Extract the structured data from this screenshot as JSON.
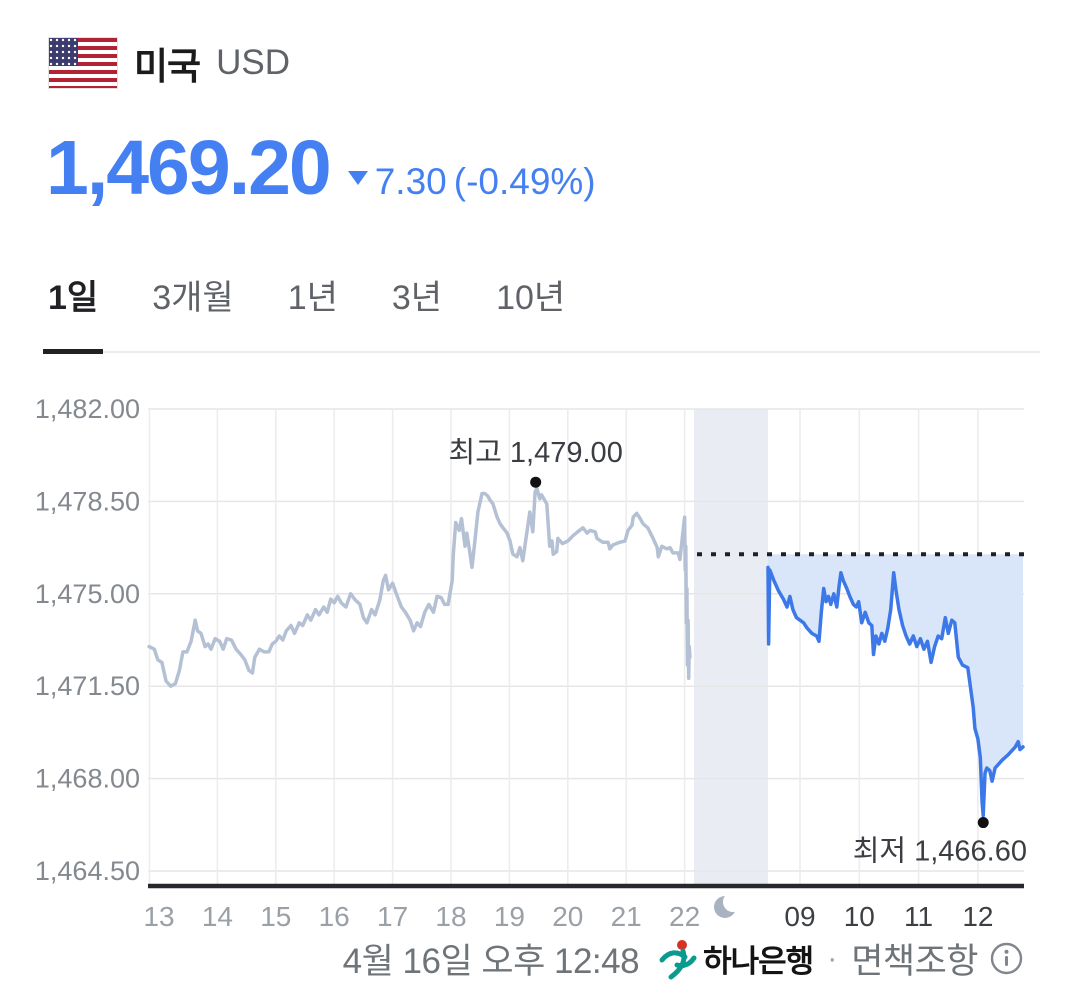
{
  "header": {
    "country": "미국",
    "currency_code": "USD",
    "price": "1,469.20",
    "change_direction": "down",
    "change_value": "7.30",
    "change_percent": "(-0.49%)"
  },
  "tabs": [
    {
      "label": "1일",
      "active": true
    },
    {
      "label": "3개월",
      "active": false
    },
    {
      "label": "1년",
      "active": false
    },
    {
      "label": "3년",
      "active": false
    },
    {
      "label": "10년",
      "active": false
    }
  ],
  "footer": {
    "timestamp": "4월 16일 오후 12:48",
    "source": "하나은행",
    "separator": "·",
    "disclaimer": "면책조항",
    "info_icon": "info-circle-icon"
  },
  "colors": {
    "accent_blue": "#4480f2",
    "line_prev": "#b4c1d4",
    "line_today": "#3c78e8",
    "fill_today": "#d9e6f9",
    "night_band": "#e9edf3",
    "grid": "#e6e6e6",
    "axis_label": "#84898f",
    "x_label_prev": "#9aa0a6",
    "x_label_today": "#3c4043",
    "dotted_line": "#202124",
    "annotation": "#3a3d41",
    "axis_line": "#26282b",
    "moon": "#a9b2c1"
  },
  "chart_data": {
    "type": "line",
    "title": "USD/KRW intraday (1일)",
    "ylim": [
      1464.5,
      1482.0
    ],
    "grid": true,
    "prev_close_value": 1476.5,
    "y_ticks": [
      {
        "label": "1,482.00",
        "value": 1482.0
      },
      {
        "label": "1,478.50",
        "value": 1478.5
      },
      {
        "label": "1,475.00",
        "value": 1475.0
      },
      {
        "label": "1,471.50",
        "value": 1471.5
      },
      {
        "label": "1,468.00",
        "value": 1468.0
      },
      {
        "label": "1,464.50",
        "value": 1464.5
      }
    ],
    "x_ticks_prev": [
      {
        "label": "13",
        "t": 13
      },
      {
        "label": "14",
        "t": 14
      },
      {
        "label": "15",
        "t": 15
      },
      {
        "label": "16",
        "t": 16
      },
      {
        "label": "17",
        "t": 17
      },
      {
        "label": "18",
        "t": 18
      },
      {
        "label": "19",
        "t": 19
      },
      {
        "label": "20",
        "t": 20
      },
      {
        "label": "21",
        "t": 21
      },
      {
        "label": "22",
        "t": 22
      }
    ],
    "x_ticks_today": [
      {
        "label": "09",
        "t": 9
      },
      {
        "label": "10",
        "t": 10
      },
      {
        "label": "11",
        "t": 11
      },
      {
        "label": "12",
        "t": 12
      }
    ],
    "night_gap_icon": "moon-crescent-icon",
    "high_annotation": {
      "label": "최고 1,479.00",
      "value": 1479.0,
      "t": 19.45
    },
    "low_annotation": {
      "label": "최저 1,466.60",
      "value": 1466.6,
      "t": 12.09
    },
    "series": [
      {
        "name": "previous-day",
        "session": "prev",
        "points": [
          [
            12.83,
            1473.0
          ],
          [
            12.92,
            1472.9
          ],
          [
            12.98,
            1472.5
          ],
          [
            13.05,
            1472.4
          ],
          [
            13.12,
            1471.7
          ],
          [
            13.2,
            1471.5
          ],
          [
            13.28,
            1471.6
          ],
          [
            13.35,
            1472.1
          ],
          [
            13.41,
            1472.8
          ],
          [
            13.48,
            1472.8
          ],
          [
            13.55,
            1473.2
          ],
          [
            13.62,
            1474.0
          ],
          [
            13.66,
            1473.6
          ],
          [
            13.72,
            1473.5
          ],
          [
            13.79,
            1473.0
          ],
          [
            13.84,
            1473.1
          ],
          [
            13.89,
            1472.9
          ],
          [
            13.96,
            1473.3
          ],
          [
            14.04,
            1473.2
          ],
          [
            14.1,
            1472.9
          ],
          [
            14.16,
            1473.3
          ],
          [
            14.24,
            1473.25
          ],
          [
            14.32,
            1472.9
          ],
          [
            14.4,
            1472.7
          ],
          [
            14.47,
            1472.5
          ],
          [
            14.54,
            1472.1
          ],
          [
            14.6,
            1472.0
          ],
          [
            14.64,
            1472.6
          ],
          [
            14.72,
            1472.9
          ],
          [
            14.8,
            1472.8
          ],
          [
            14.88,
            1472.8
          ],
          [
            14.94,
            1473.1
          ],
          [
            15.0,
            1473.2
          ],
          [
            15.06,
            1473.4
          ],
          [
            15.12,
            1473.25
          ],
          [
            15.18,
            1473.6
          ],
          [
            15.26,
            1473.8
          ],
          [
            15.32,
            1473.5
          ],
          [
            15.4,
            1473.9
          ],
          [
            15.46,
            1473.8
          ],
          [
            15.54,
            1474.2
          ],
          [
            15.6,
            1474.0
          ],
          [
            15.68,
            1474.4
          ],
          [
            15.74,
            1474.2
          ],
          [
            15.82,
            1474.5
          ],
          [
            15.88,
            1474.3
          ],
          [
            15.94,
            1474.8
          ],
          [
            16.0,
            1474.66
          ],
          [
            16.06,
            1474.9
          ],
          [
            16.12,
            1474.66
          ],
          [
            16.2,
            1474.5
          ],
          [
            16.28,
            1475.0
          ],
          [
            16.36,
            1474.77
          ],
          [
            16.44,
            1474.6
          ],
          [
            16.5,
            1474.1
          ],
          [
            16.56,
            1473.9
          ],
          [
            16.64,
            1474.4
          ],
          [
            16.7,
            1474.2
          ],
          [
            16.78,
            1474.77
          ],
          [
            16.84,
            1475.5
          ],
          [
            16.88,
            1475.7
          ],
          [
            16.93,
            1475.15
          ],
          [
            17.0,
            1475.4
          ],
          [
            17.08,
            1474.9
          ],
          [
            17.15,
            1474.5
          ],
          [
            17.22,
            1474.3
          ],
          [
            17.3,
            1474.0
          ],
          [
            17.36,
            1473.6
          ],
          [
            17.42,
            1473.9
          ],
          [
            17.48,
            1473.76
          ],
          [
            17.55,
            1474.3
          ],
          [
            17.62,
            1474.6
          ],
          [
            17.7,
            1474.3
          ],
          [
            17.76,
            1474.9
          ],
          [
            17.83,
            1474.86
          ],
          [
            17.89,
            1474.6
          ],
          [
            17.95,
            1474.6
          ],
          [
            18.02,
            1475.5
          ],
          [
            18.04,
            1476.5
          ],
          [
            18.08,
            1477.7
          ],
          [
            18.14,
            1477.4
          ],
          [
            18.18,
            1477.85
          ],
          [
            18.24,
            1476.8
          ],
          [
            18.27,
            1477.3
          ],
          [
            18.32,
            1476.6
          ],
          [
            18.36,
            1476.0
          ],
          [
            18.41,
            1477.0
          ],
          [
            18.46,
            1478.1
          ],
          [
            18.53,
            1478.8
          ],
          [
            18.58,
            1478.8
          ],
          [
            18.63,
            1478.7
          ],
          [
            18.67,
            1478.55
          ],
          [
            18.72,
            1478.4
          ],
          [
            18.79,
            1477.9
          ],
          [
            18.84,
            1477.65
          ],
          [
            18.89,
            1477.5
          ],
          [
            18.96,
            1477.3
          ],
          [
            19.01,
            1477.0
          ],
          [
            19.06,
            1476.5
          ],
          [
            19.13,
            1476.4
          ],
          [
            19.18,
            1476.75
          ],
          [
            19.23,
            1476.25
          ],
          [
            19.32,
            1477.65
          ],
          [
            19.35,
            1478.1
          ],
          [
            19.4,
            1477.35
          ],
          [
            19.44,
            1478.85
          ],
          [
            19.47,
            1479.0
          ],
          [
            19.52,
            1478.6
          ],
          [
            19.55,
            1478.75
          ],
          [
            19.64,
            1478.4
          ],
          [
            19.69,
            1476.8
          ],
          [
            19.73,
            1477.0
          ],
          [
            19.75,
            1476.5
          ],
          [
            19.81,
            1476.6
          ],
          [
            19.83,
            1477.1
          ],
          [
            19.91,
            1476.9
          ],
          [
            20.0,
            1477.0
          ],
          [
            20.09,
            1477.2
          ],
          [
            20.17,
            1477.35
          ],
          [
            20.26,
            1477.5
          ],
          [
            20.33,
            1477.3
          ],
          [
            20.38,
            1477.4
          ],
          [
            20.47,
            1477.35
          ],
          [
            20.5,
            1477.1
          ],
          [
            20.6,
            1476.95
          ],
          [
            20.69,
            1476.95
          ],
          [
            20.72,
            1476.7
          ],
          [
            20.77,
            1476.85
          ],
          [
            20.89,
            1476.95
          ],
          [
            20.98,
            1477.0
          ],
          [
            21.03,
            1477.4
          ],
          [
            21.1,
            1477.6
          ],
          [
            21.12,
            1477.9
          ],
          [
            21.18,
            1478.05
          ],
          [
            21.24,
            1477.85
          ],
          [
            21.29,
            1477.65
          ],
          [
            21.37,
            1477.5
          ],
          [
            21.46,
            1477.1
          ],
          [
            21.53,
            1476.75
          ],
          [
            21.55,
            1476.4
          ],
          [
            21.61,
            1476.8
          ],
          [
            21.7,
            1476.7
          ],
          [
            21.75,
            1476.75
          ],
          [
            21.8,
            1476.55
          ],
          [
            21.89,
            1476.55
          ],
          [
            21.92,
            1476.3
          ],
          [
            22.0,
            1477.9
          ],
          [
            22.01,
            1475.9
          ],
          [
            22.02,
            1476.8
          ],
          [
            22.03,
            1473.9
          ],
          [
            22.04,
            1475.2
          ],
          [
            22.05,
            1472.3
          ],
          [
            22.06,
            1474.0
          ],
          [
            22.07,
            1471.8
          ],
          [
            22.08,
            1473.0
          ],
          [
            22.09,
            1472.6
          ]
        ]
      },
      {
        "name": "today",
        "session": "today",
        "points": [
          [
            8.46,
            1476.0
          ],
          [
            8.47,
            1473.1
          ],
          [
            8.49,
            1475.9
          ],
          [
            8.56,
            1475.5
          ],
          [
            8.64,
            1475.1
          ],
          [
            8.72,
            1474.8
          ],
          [
            8.78,
            1474.5
          ],
          [
            8.83,
            1474.9
          ],
          [
            8.88,
            1474.4
          ],
          [
            8.94,
            1474.1
          ],
          [
            9.0,
            1474.0
          ],
          [
            9.06,
            1473.9
          ],
          [
            9.12,
            1473.7
          ],
          [
            9.2,
            1473.5
          ],
          [
            9.28,
            1473.4
          ],
          [
            9.32,
            1473.2
          ],
          [
            9.36,
            1474.3
          ],
          [
            9.4,
            1475.2
          ],
          [
            9.44,
            1474.7
          ],
          [
            9.48,
            1474.9
          ],
          [
            9.52,
            1474.6
          ],
          [
            9.57,
            1475.0
          ],
          [
            9.62,
            1474.5
          ],
          [
            9.66,
            1475.3
          ],
          [
            9.69,
            1475.8
          ],
          [
            9.73,
            1475.5
          ],
          [
            9.79,
            1475.2
          ],
          [
            9.84,
            1474.9
          ],
          [
            9.9,
            1474.6
          ],
          [
            9.95,
            1474.5
          ],
          [
            9.99,
            1474.7
          ],
          [
            10.04,
            1473.9
          ],
          [
            10.1,
            1474.3
          ],
          [
            10.16,
            1473.9
          ],
          [
            10.21,
            1473.8
          ],
          [
            10.24,
            1472.7
          ],
          [
            10.28,
            1473.4
          ],
          [
            10.33,
            1473.1
          ],
          [
            10.38,
            1473.5
          ],
          [
            10.43,
            1473.2
          ],
          [
            10.48,
            1473.7
          ],
          [
            10.53,
            1474.4
          ],
          [
            10.58,
            1475.8
          ],
          [
            10.62,
            1475.1
          ],
          [
            10.67,
            1474.4
          ],
          [
            10.73,
            1473.8
          ],
          [
            10.79,
            1473.4
          ],
          [
            10.85,
            1473.1
          ],
          [
            10.91,
            1473.4
          ],
          [
            10.97,
            1473.0
          ],
          [
            11.03,
            1473.3
          ],
          [
            11.09,
            1472.9
          ],
          [
            11.15,
            1473.2
          ],
          [
            11.21,
            1472.4
          ],
          [
            11.27,
            1473.0
          ],
          [
            11.33,
            1473.4
          ],
          [
            11.39,
            1473.3
          ],
          [
            11.45,
            1474.1
          ],
          [
            11.5,
            1473.5
          ],
          [
            11.56,
            1474.0
          ],
          [
            11.61,
            1473.9
          ],
          [
            11.67,
            1472.6
          ],
          [
            11.74,
            1472.3
          ],
          [
            11.83,
            1472.2
          ],
          [
            11.92,
            1470.7
          ],
          [
            11.95,
            1469.9
          ],
          [
            12.0,
            1469.5
          ],
          [
            12.04,
            1468.8
          ],
          [
            12.07,
            1467.1
          ],
          [
            12.09,
            1466.6
          ],
          [
            12.12,
            1468.2
          ],
          [
            12.15,
            1468.4
          ],
          [
            12.2,
            1468.3
          ],
          [
            12.24,
            1467.9
          ],
          [
            12.29,
            1468.4
          ],
          [
            12.41,
            1468.7
          ],
          [
            12.51,
            1468.9
          ],
          [
            12.63,
            1469.2
          ],
          [
            12.68,
            1469.4
          ],
          [
            12.71,
            1469.1
          ],
          [
            12.76,
            1469.2
          ]
        ]
      }
    ]
  }
}
